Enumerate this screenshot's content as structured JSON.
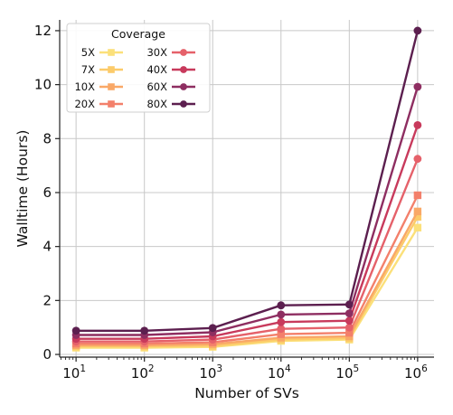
{
  "chart_data": {
    "type": "line",
    "xlabel": "Number of SVs",
    "ylabel": "Walltime (Hours)",
    "x": [
      10,
      100,
      1000,
      10000,
      100000,
      1000000
    ],
    "xscale": "log",
    "xtick_labels": [
      {
        "base": "10",
        "exp": "1"
      },
      {
        "base": "10",
        "exp": "2"
      },
      {
        "base": "10",
        "exp": "3"
      },
      {
        "base": "10",
        "exp": "4"
      },
      {
        "base": "10",
        "exp": "5"
      },
      {
        "base": "10",
        "exp": "6"
      }
    ],
    "yticks": [
      0,
      2,
      4,
      6,
      8,
      10,
      12
    ],
    "ylim": [
      -0.1,
      12.4
    ],
    "grid": true,
    "legend": {
      "title": "Coverage",
      "placement": "top-left",
      "ncol": 2
    },
    "series": [
      {
        "name": "5X",
        "color": "#fbe07a",
        "marker": "square",
        "values": [
          0.25,
          0.25,
          0.28,
          0.5,
          0.55,
          4.7
        ]
      },
      {
        "name": "7X",
        "color": "#fccb6a",
        "marker": "square",
        "values": [
          0.3,
          0.3,
          0.32,
          0.55,
          0.6,
          5.1
        ]
      },
      {
        "name": "10X",
        "color": "#f9a867",
        "marker": "square",
        "values": [
          0.34,
          0.34,
          0.38,
          0.62,
          0.67,
          5.3
        ]
      },
      {
        "name": "20X",
        "color": "#f3806b",
        "marker": "square",
        "values": [
          0.4,
          0.4,
          0.45,
          0.75,
          0.8,
          5.9
        ]
      },
      {
        "name": "30X",
        "color": "#e5616a",
        "marker": "circle",
        "values": [
          0.48,
          0.48,
          0.55,
          0.95,
          1.0,
          7.25
        ]
      },
      {
        "name": "40X",
        "color": "#c83a5c",
        "marker": "circle",
        "values": [
          0.58,
          0.58,
          0.67,
          1.2,
          1.25,
          8.5
        ]
      },
      {
        "name": "60X",
        "color": "#8e2e61",
        "marker": "circle",
        "values": [
          0.72,
          0.72,
          0.82,
          1.48,
          1.52,
          9.92
        ]
      },
      {
        "name": "80X",
        "color": "#5c1f4f",
        "marker": "circle",
        "values": [
          0.88,
          0.88,
          0.98,
          1.82,
          1.85,
          12.0
        ]
      }
    ]
  }
}
